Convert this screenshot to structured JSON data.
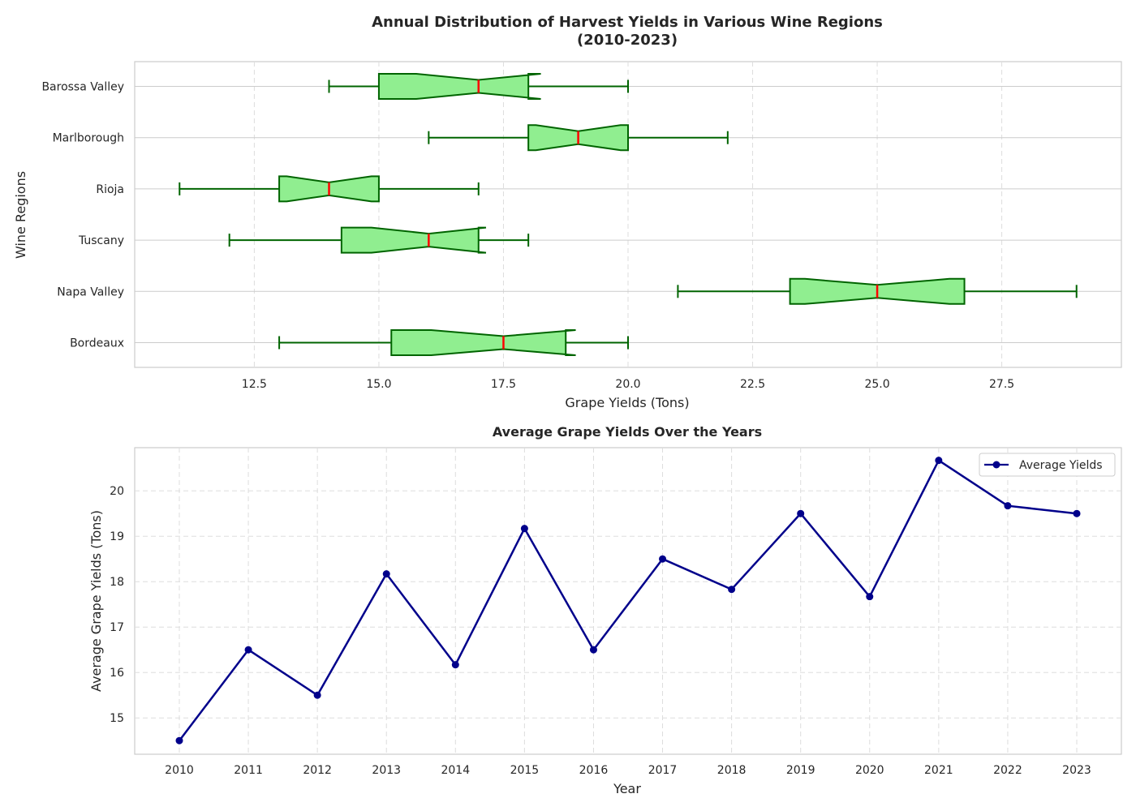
{
  "chart_data": [
    {
      "type": "box",
      "orientation": "horizontal",
      "title": "Annual Distribution of Harvest Yields in Various Wine Regions\n(2010-2023)",
      "xlabel": "Grape Yields (Tons)",
      "ylabel": "Wine Regions",
      "xlim": [
        10.1,
        29.9
      ],
      "xticks": [
        "12.5",
        "15.0",
        "17.5",
        "20.0",
        "22.5",
        "25.0",
        "27.5"
      ],
      "grid": true,
      "colors": {
        "box_fill": "#90ee90",
        "box_edge": "#006400",
        "median": "#ff0000",
        "whisker": "#006400"
      },
      "categories": [
        "Bordeaux",
        "Napa Valley",
        "Tuscany",
        "Rioja",
        "Marlborough",
        "Barossa Valley"
      ],
      "boxes": [
        {
          "name": "Bordeaux",
          "min": 13,
          "q1": 15.25,
          "notch_low": 16.05,
          "median": 17.5,
          "notch_high": 18.95,
          "q3": 18.75,
          "max": 20
        },
        {
          "name": "Napa Valley",
          "min": 21,
          "q1": 23.25,
          "notch_low": 23.55,
          "median": 25,
          "notch_high": 26.45,
          "q3": 26.75,
          "max": 29
        },
        {
          "name": "Tuscany",
          "min": 12,
          "q1": 14.25,
          "notch_low": 14.85,
          "median": 16,
          "notch_high": 17.15,
          "q3": 17,
          "max": 18
        },
        {
          "name": "Rioja",
          "min": 11,
          "q1": 13,
          "notch_low": 13.15,
          "median": 14,
          "notch_high": 14.85,
          "q3": 15,
          "max": 17
        },
        {
          "name": "Marlborough",
          "min": 16,
          "q1": 18,
          "notch_low": 18.15,
          "median": 19,
          "notch_high": 19.85,
          "q3": 20,
          "max": 22
        },
        {
          "name": "Barossa Valley",
          "min": 14,
          "q1": 15,
          "notch_low": 15.75,
          "median": 17,
          "notch_high": 18.25,
          "q3": 18,
          "max": 20
        }
      ]
    },
    {
      "type": "line",
      "title": "Average Grape Yields Over the Years",
      "xlabel": "Year",
      "ylabel": "Average Grape Yields (Tons)",
      "ylim": [
        14.2,
        20.95
      ],
      "yticks": [
        "15",
        "16",
        "17",
        "18",
        "19",
        "20"
      ],
      "grid": true,
      "legend": "top-right",
      "x": [
        "2010",
        "2011",
        "2012",
        "2013",
        "2014",
        "2015",
        "2016",
        "2017",
        "2018",
        "2019",
        "2020",
        "2021",
        "2022",
        "2023"
      ],
      "series": [
        {
          "name": "Average Yields",
          "color": "#00008b",
          "marker": "circle",
          "values": [
            14.5,
            16.5,
            15.5,
            18.17,
            16.17,
            19.17,
            16.5,
            18.5,
            17.83,
            19.5,
            17.67,
            20.67,
            19.67,
            19.5
          ]
        }
      ]
    }
  ]
}
